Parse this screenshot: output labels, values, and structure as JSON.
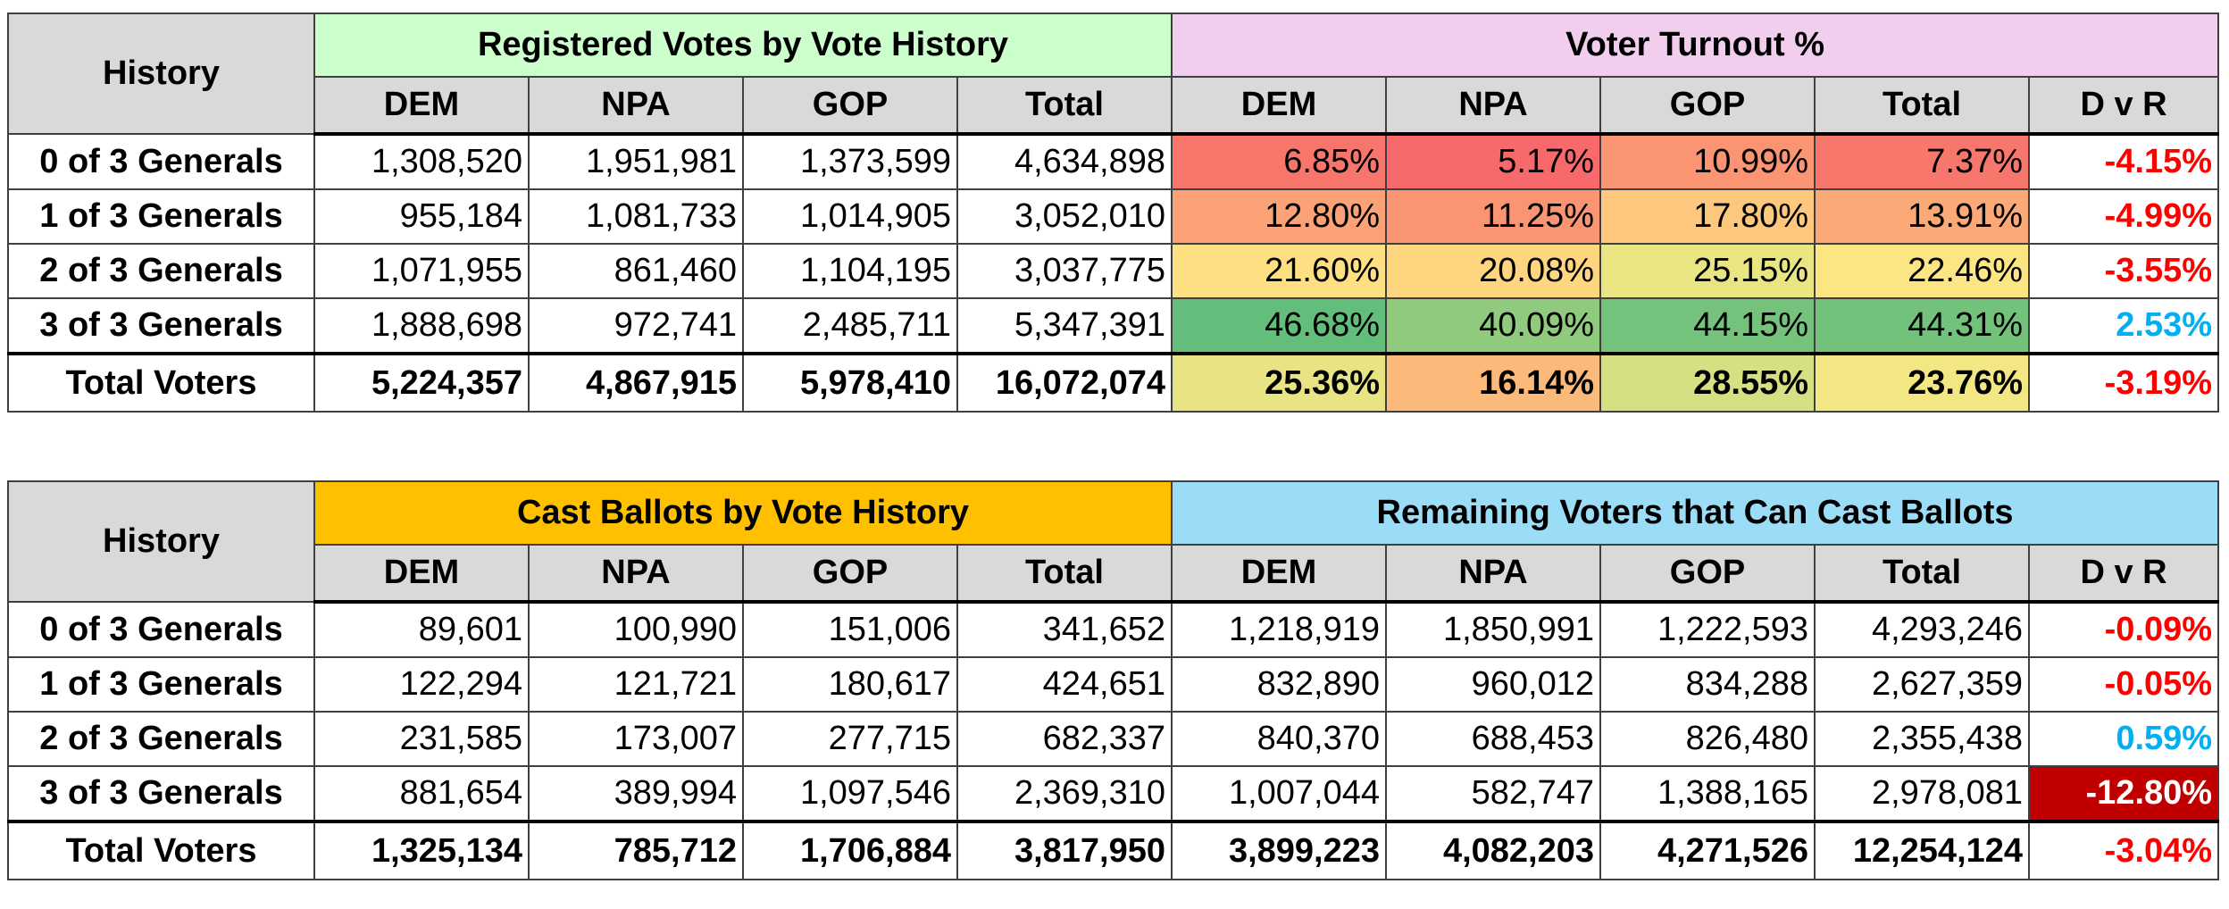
{
  "colors": {
    "header_gray": "#d9d9d9",
    "registered_header": "#ccffcc",
    "turnout_header": "#f1cdee",
    "cast_header": "#ffc000",
    "remaining_header": "#9bdcf7",
    "dvr_negative": "#ff0000",
    "dvr_positive": "#00b0f0",
    "highlight_bg": "#c00000",
    "highlight_text": "#ffffff"
  },
  "top": {
    "history_header": "History",
    "group1_title": "Registered Votes by Vote History",
    "group2_title": "Voter Turnout %",
    "columns1": [
      "DEM",
      "NPA",
      "GOP",
      "Total"
    ],
    "columns2": [
      "DEM",
      "NPA",
      "GOP",
      "Total",
      "D v R"
    ],
    "rows": [
      {
        "label": "0 of 3 Generals",
        "reg": [
          "1,308,520",
          "1,951,981",
          "1,373,599",
          "4,634,898"
        ],
        "turnout": [
          "6.85%",
          "5.17%",
          "10.99%",
          "7.37%"
        ],
        "turnout_colors": [
          "#f8756c",
          "#f8696b",
          "#fa9473",
          "#f8776d"
        ],
        "dvr": "-4.15%",
        "dvr_color": "#ff0000"
      },
      {
        "label": "1 of 3 Generals",
        "reg": [
          "955,184",
          "1,081,733",
          "1,014,905",
          "3,052,010"
        ],
        "turnout": [
          "12.80%",
          "11.25%",
          "17.80%",
          "13.91%"
        ],
        "turnout_colors": [
          "#fba276",
          "#fa9573",
          "#fdc87d",
          "#fba977"
        ],
        "dvr": "-4.99%",
        "dvr_color": "#ff0000"
      },
      {
        "label": "2 of 3 Generals",
        "reg": [
          "1,071,955",
          "861,460",
          "1,104,195",
          "3,037,775"
        ],
        "turnout": [
          "21.60%",
          "20.08%",
          "25.15%",
          "22.46%"
        ],
        "turnout_colors": [
          "#fee082",
          "#fed680",
          "#e9e583",
          "#fbe683"
        ],
        "dvr": "-3.55%",
        "dvr_color": "#ff0000"
      },
      {
        "label": "3 of 3 Generals",
        "reg": [
          "1,888,698",
          "972,741",
          "2,485,711",
          "5,347,391"
        ],
        "turnout": [
          "46.68%",
          "40.09%",
          "44.15%",
          "44.31%"
        ],
        "turnout_colors": [
          "#63be7b",
          "#8fca7e",
          "#74c27c",
          "#73c27c"
        ],
        "dvr": "2.53%",
        "dvr_color": "#00b0f0"
      },
      {
        "label": "Total Voters",
        "reg": [
          "5,224,357",
          "4,867,915",
          "5,978,410",
          "16,072,074"
        ],
        "turnout": [
          "25.36%",
          "16.14%",
          "28.55%",
          "23.76%"
        ],
        "turnout_colors": [
          "#e8e483",
          "#fcba7a",
          "#d6df82",
          "#f3e783"
        ],
        "dvr": "-3.19%",
        "dvr_color": "#ff0000"
      }
    ]
  },
  "bottom": {
    "history_header": "History",
    "group1_title": "Cast Ballots by Vote History",
    "group2_title": "Remaining Voters that Can Cast Ballots",
    "columns1": [
      "DEM",
      "NPA",
      "GOP",
      "Total"
    ],
    "columns2": [
      "DEM",
      "NPA",
      "GOP",
      "Total",
      "D v R"
    ],
    "rows": [
      {
        "label": "0 of 3 Generals",
        "cast": [
          "89,601",
          "100,990",
          "151,006",
          "341,652"
        ],
        "remaining": [
          "1,218,919",
          "1,850,991",
          "1,222,593",
          "4,293,246"
        ],
        "dvr": "-0.09%",
        "dvr_color": "#ff0000",
        "dvr_bg": ""
      },
      {
        "label": "1 of 3 Generals",
        "cast": [
          "122,294",
          "121,721",
          "180,617",
          "424,651"
        ],
        "remaining": [
          "832,890",
          "960,012",
          "834,288",
          "2,627,359"
        ],
        "dvr": "-0.05%",
        "dvr_color": "#ff0000",
        "dvr_bg": ""
      },
      {
        "label": "2 of 3 Generals",
        "cast": [
          "231,585",
          "173,007",
          "277,715",
          "682,337"
        ],
        "remaining": [
          "840,370",
          "688,453",
          "826,480",
          "2,355,438"
        ],
        "dvr": "0.59%",
        "dvr_color": "#00b0f0",
        "dvr_bg": ""
      },
      {
        "label": "3 of 3 Generals",
        "cast": [
          "881,654",
          "389,994",
          "1,097,546",
          "2,369,310"
        ],
        "remaining": [
          "1,007,044",
          "582,747",
          "1,388,165",
          "2,978,081"
        ],
        "dvr": "-12.80%",
        "dvr_color": "#ffffff",
        "dvr_bg": "#c00000"
      },
      {
        "label": "Total Voters",
        "cast": [
          "1,325,134",
          "785,712",
          "1,706,884",
          "3,817,950"
        ],
        "remaining": [
          "3,899,223",
          "4,082,203",
          "4,271,526",
          "12,254,124"
        ],
        "dvr": "-3.04%",
        "dvr_color": "#ff0000",
        "dvr_bg": ""
      }
    ]
  }
}
